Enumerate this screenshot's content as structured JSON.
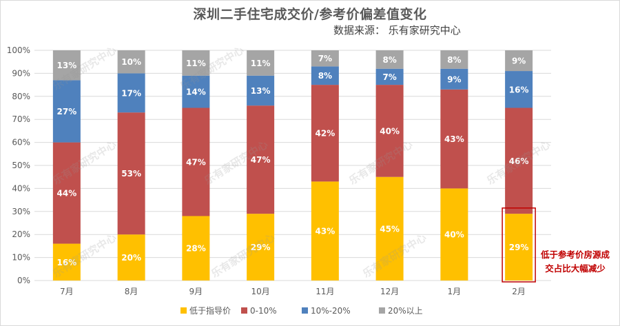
{
  "title": "深圳二手住宅成交价/参考价偏差值变化",
  "source": "数据来源： 乐有家研究中心",
  "annotation": [
    "低于参考价房源成",
    "交占比大幅减少"
  ],
  "watermark": "乐有家研究中心",
  "colors": {
    "series": [
      "#FFC000",
      "#C0504D",
      "#4F81BD",
      "#A5A5A5"
    ],
    "highlight": "#C00000",
    "grid": "#D9D9D9",
    "axis_text": "#595959"
  },
  "chart_data": {
    "type": "bar",
    "stacked": true,
    "categories": [
      "7月",
      "8月",
      "9月",
      "10月",
      "11月",
      "12月",
      "1月",
      "2月"
    ],
    "ylim": [
      0,
      100
    ],
    "yticks": [
      "0%",
      "10%",
      "20%",
      "30%",
      "40%",
      "50%",
      "60%",
      "70%",
      "80%",
      "90%",
      "100%"
    ],
    "series": [
      {
        "name": "低于指导价",
        "values": [
          16,
          20,
          28,
          29,
          43,
          45,
          40,
          29
        ]
      },
      {
        "name": "0-10%",
        "values": [
          44,
          53,
          47,
          47,
          42,
          40,
          43,
          46
        ]
      },
      {
        "name": "10%-20%",
        "values": [
          27,
          17,
          14,
          13,
          8,
          7,
          9,
          16
        ]
      },
      {
        "name": "20%以上",
        "values": [
          13,
          10,
          11,
          11,
          7,
          8,
          8,
          9
        ]
      }
    ],
    "highlight_category": "2月",
    "legend_position": "bottom",
    "grid": true
  }
}
